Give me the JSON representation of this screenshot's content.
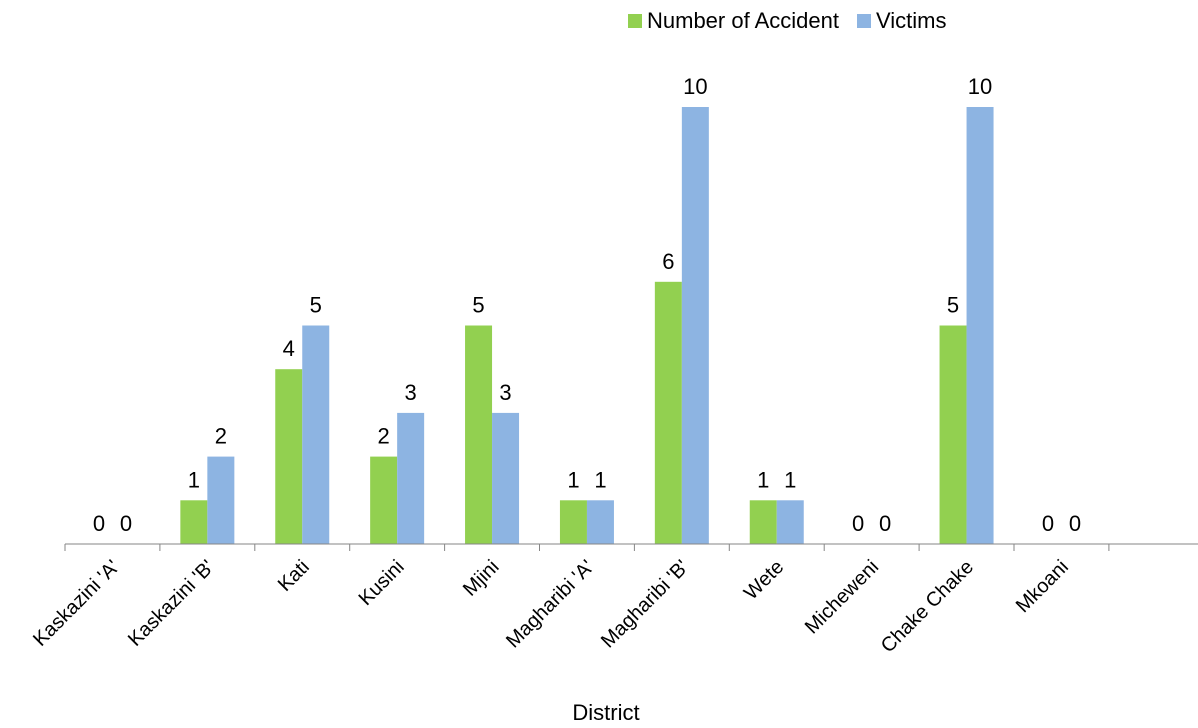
{
  "chart_data": {
    "type": "bar",
    "categories": [
      "Kaskazini 'A'",
      "Kaskazini 'B'",
      "Kati",
      "Kusini",
      "Mjini",
      "Magharibi 'A'",
      "Magharibi 'B'",
      "Wete",
      "Micheweni",
      "Chake Chake",
      "Mkoani"
    ],
    "series": [
      {
        "name": "Number of Accident",
        "color": "#92d050",
        "values": [
          0,
          1,
          4,
          2,
          5,
          1,
          6,
          1,
          0,
          5,
          0
        ]
      },
      {
        "name": "Victims",
        "color": "#8db4e2",
        "values": [
          0,
          2,
          5,
          3,
          3,
          1,
          10,
          1,
          0,
          10,
          0
        ]
      }
    ],
    "xlabel": "District",
    "ylabel": "",
    "ylim": [
      0,
      10
    ],
    "grid": false,
    "legend_position": "top-right",
    "data_labels": true
  }
}
